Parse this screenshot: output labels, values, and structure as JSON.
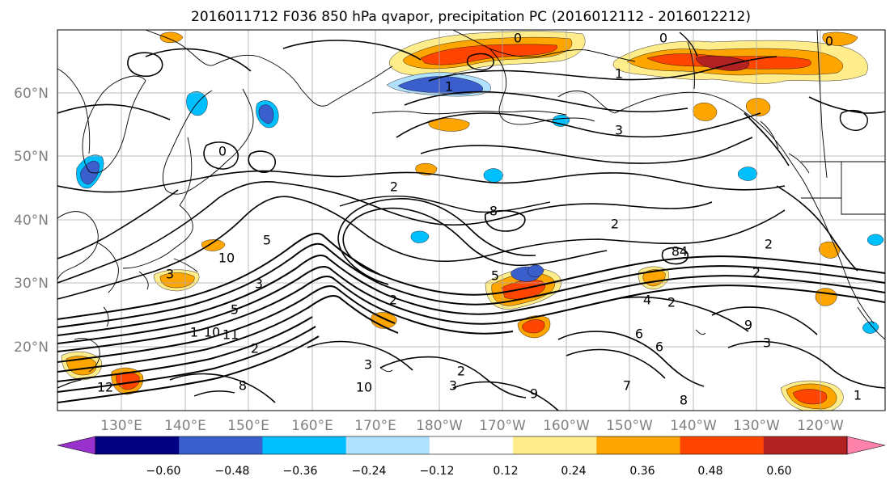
{
  "title": "2016011712 F036 850 hPa qvapor, precipitation PC (2016012112 - 2016012212)",
  "lat_labels": [
    "60°N",
    "50°N",
    "40°N",
    "30°N",
    "20°N"
  ],
  "lon_labels": [
    "130°E",
    "140°E",
    "150°E",
    "160°E",
    "170°E",
    "180°W",
    "170°W",
    "160°W",
    "150°W",
    "140°W",
    "130°W",
    "120°W"
  ],
  "colorbar": {
    "ticks": [
      "−0.60",
      "−0.48",
      "−0.36",
      "−0.24",
      "−0.12",
      "0.12",
      "0.24",
      "0.36",
      "0.48",
      "0.60"
    ],
    "colors": [
      "#9932CC",
      "#000080",
      "#3A5FCD",
      "#00BFFF",
      "#B0E2FF",
      "#FFFFFF",
      "#FFEC8B",
      "#FFA500",
      "#FF4500",
      "#B22222",
      "#FF82AB"
    ]
  },
  "contour_labels": [
    "0",
    "0",
    "0",
    "0",
    "1",
    "1",
    "2",
    "3",
    "3",
    "2",
    "2",
    "4",
    "5",
    "5",
    "8",
    "8",
    "10",
    "3",
    "2",
    "2",
    "4",
    "6",
    "3",
    "2",
    "10",
    "9",
    "9",
    "6",
    "8",
    "8",
    "3",
    "7",
    "11",
    "10",
    "1",
    "12",
    "3",
    "5",
    "1",
    "2",
    "2"
  ]
}
